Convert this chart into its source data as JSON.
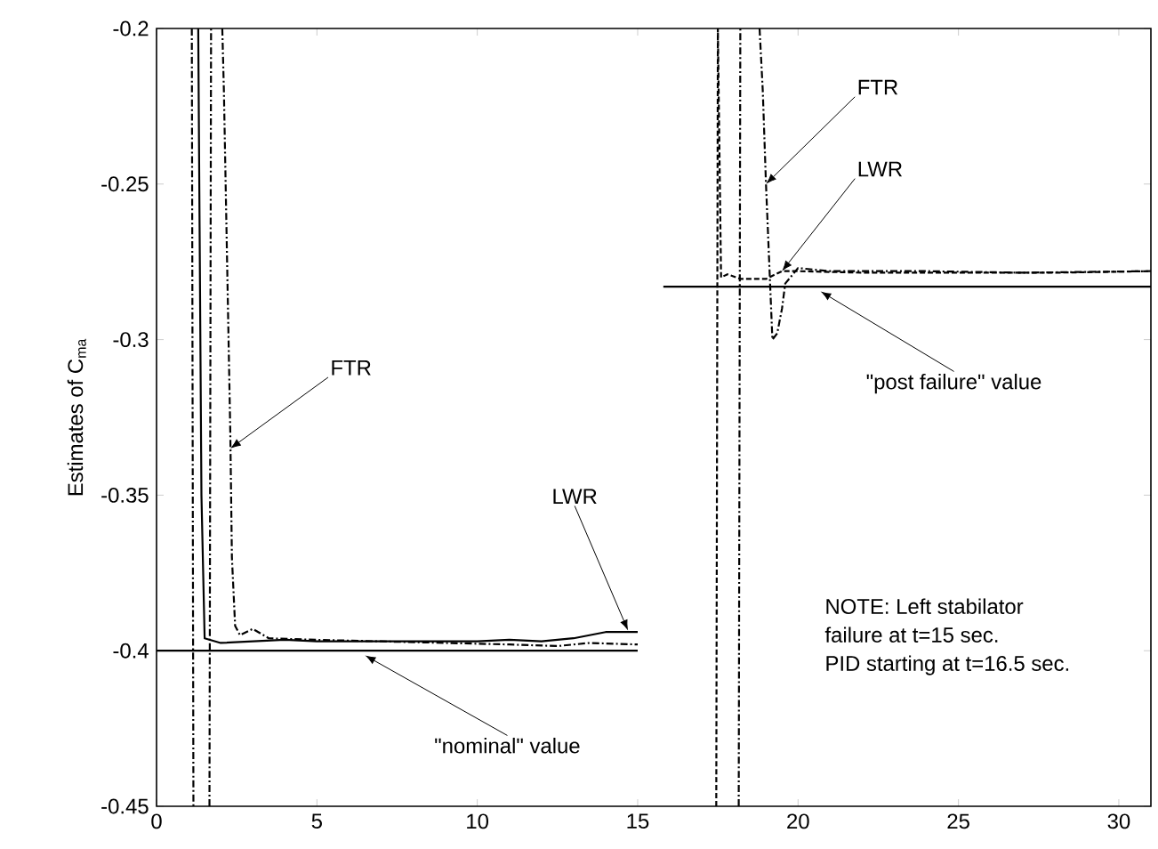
{
  "chart_data": {
    "type": "line",
    "ylabel": "Estimates of C$_{ma}$",
    "xlim": [
      0,
      31
    ],
    "ylim": [
      -0.45,
      -0.2
    ],
    "xticks": [
      0,
      5,
      10,
      15,
      20,
      25,
      30
    ],
    "yticks": [
      -0.45,
      -0.4,
      -0.35,
      -0.3,
      -0.25,
      -0.2
    ],
    "grid": false,
    "marker": "none",
    "series": [
      {
        "color": "#000000",
        "line_style": "solid",
        "x": [
          1.3,
          1.4,
          1.5,
          2,
          3,
          4,
          5,
          6,
          7,
          8,
          9,
          10,
          11,
          12,
          13,
          13.5,
          14,
          15
        ],
        "values": [
          -0.2,
          -0.35,
          -0.396,
          -0.3975,
          -0.397,
          -0.3965,
          -0.397,
          -0.397,
          -0.397,
          -0.397,
          -0.397,
          -0.397,
          -0.3965,
          -0.397,
          -0.396,
          -0.395,
          -0.394,
          -0.394
        ]
      },
      {
        "color": "#000000",
        "line_style": "dashdot",
        "x": [
          1.1,
          1.15,
          1.4,
          1.65,
          1.7,
          1.85,
          2.05,
          2.1,
          2.3,
          2.35,
          2.45,
          2.6,
          3,
          3.5,
          5,
          7,
          9,
          11,
          12.5,
          13.5,
          15
        ],
        "values": [
          -0.2,
          -0.45,
          null,
          -0.45,
          -0.2,
          null,
          -0.2,
          -0.22,
          -0.33,
          -0.37,
          -0.392,
          -0.395,
          -0.393,
          -0.396,
          -0.3965,
          -0.397,
          -0.3975,
          -0.398,
          -0.3985,
          -0.3975,
          -0.398
        ]
      },
      {
        "color": "#000000",
        "line_style": "solid",
        "x": [
          0,
          15
        ],
        "values": [
          -0.4,
          -0.4
        ]
      },
      {
        "color": "#000000",
        "line_style": "solid",
        "x": [
          15.8,
          31
        ],
        "values": [
          -0.283,
          -0.283
        ]
      },
      {
        "color": "#000000",
        "line_style": "dashed",
        "x": [
          17.45,
          17.5,
          17.6,
          17.8,
          18.2,
          19,
          19.5,
          20,
          22,
          25,
          28,
          31
        ],
        "values": [
          -0.45,
          -0.2,
          -0.28,
          -0.279,
          -0.2805,
          -0.2805,
          -0.278,
          -0.278,
          -0.2785,
          -0.2785,
          -0.2785,
          -0.278
        ]
      },
      {
        "color": "#000000",
        "line_style": "dashdot",
        "x": [
          18.15,
          18.2,
          18.5,
          18.8,
          18.9,
          19.0,
          19.2,
          19.35,
          19.5,
          19.6,
          20,
          21,
          24,
          27,
          31
        ],
        "values": [
          -0.45,
          -0.2,
          null,
          -0.2,
          -0.22,
          -0.25,
          -0.3,
          -0.298,
          -0.29,
          -0.282,
          -0.277,
          -0.278,
          -0.278,
          -0.2785,
          -0.278
        ]
      }
    ],
    "annotations": [
      {
        "text": "FTR",
        "x": 2.3,
        "y": -0.335
      },
      {
        "text": "LWR",
        "x": 14.7,
        "y": -0.3935
      },
      {
        "text": "\"nominal\" value",
        "x": 6.5,
        "y": -0.4015
      },
      {
        "text": "FTR",
        "x": 19.0,
        "y": -0.25
      },
      {
        "text": "LWR",
        "x": 19.5,
        "y": -0.278
      },
      {
        "text": "\"post failure\" value",
        "x": 20.7,
        "y": -0.2845
      },
      "NOTE: Left stabilator",
      "failure at t=15 sec.",
      "PID starting at t=16.5 sec."
    ]
  }
}
